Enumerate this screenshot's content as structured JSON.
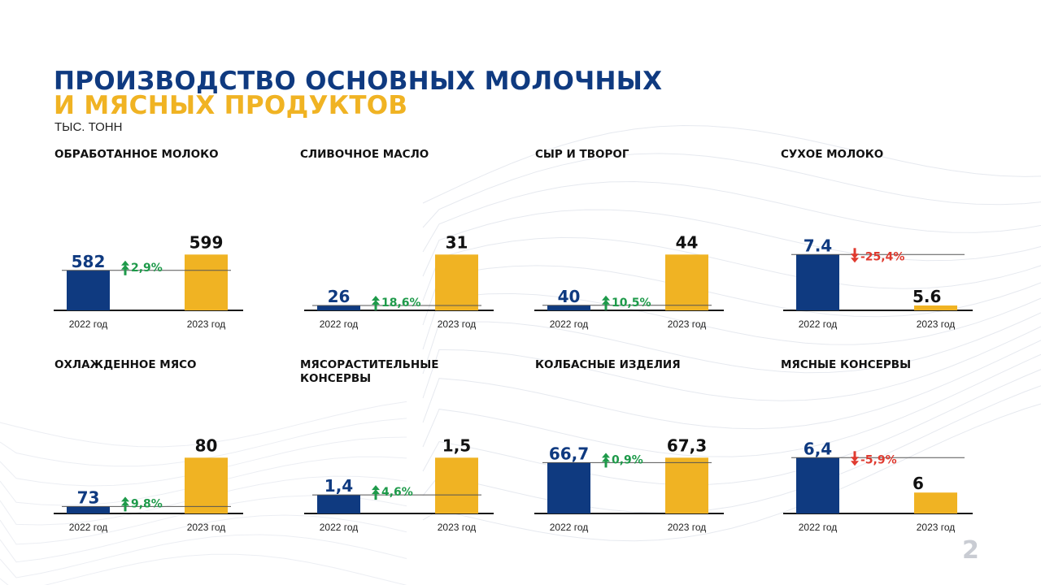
{
  "title_line1": "ПРОИЗВОДСТВО ОСНОВНЫХ МОЛОЧНЫХ",
  "title_line2": "И МЯСНЫХ ПРОДУКТОВ",
  "units": "ТЫС. ТОНН",
  "page_number": "2",
  "colors": {
    "bar_2022": "#0f3a80",
    "bar_2023": "#f0b323",
    "increase": "#1e9a4a",
    "decrease": "#e03a2f",
    "title_blue": "#0f3a80",
    "title_yellow": "#f0b323"
  },
  "chart_data": [
    {
      "type": "bar",
      "title": "ОБРАБОТАННОЕ МОЛОКО",
      "categories": [
        "2022 год",
        "2023 год"
      ],
      "values": [
        582,
        599
      ],
      "value_labels": [
        "582",
        "599"
      ],
      "change": "2,9%",
      "direction": "up"
    },
    {
      "type": "bar",
      "title": "СЛИВОЧНОЕ МАСЛО",
      "categories": [
        "2022 год",
        "2023 год"
      ],
      "values": [
        26,
        31
      ],
      "value_labels": [
        "26",
        "31"
      ],
      "change": "18,6%",
      "direction": "up"
    },
    {
      "type": "bar",
      "title": "СЫР И ТВОРОГ",
      "categories": [
        "2022 год",
        "2023 год"
      ],
      "values": [
        40,
        44
      ],
      "value_labels": [
        "40",
        "44"
      ],
      "change": "10,5%",
      "direction": "up"
    },
    {
      "type": "bar",
      "title": "СУХОЕ МОЛОКО",
      "categories": [
        "2022 год",
        "2023 год"
      ],
      "values": [
        7.4,
        5.6
      ],
      "value_labels": [
        "7.4",
        "5.6"
      ],
      "change": "-25,4%",
      "direction": "down"
    },
    {
      "type": "bar",
      "title": "ОХЛАЖДЕННОЕ МЯСО",
      "categories": [
        "2022 год",
        "2023 год"
      ],
      "values": [
        73,
        80
      ],
      "value_labels": [
        "73",
        "80"
      ],
      "change": "9,8%",
      "direction": "up"
    },
    {
      "type": "bar",
      "title": "МЯСОРАСТИТЕЛЬНЫЕ КОНСЕРВЫ",
      "categories": [
        "2022 год",
        "2023 год"
      ],
      "values": [
        1.4,
        1.5
      ],
      "value_labels": [
        "1,4",
        "1,5"
      ],
      "change": "4,6%",
      "direction": "up"
    },
    {
      "type": "bar",
      "title": "КОЛБАСНЫЕ ИЗДЕЛИЯ",
      "categories": [
        "2022 год",
        "2023 год"
      ],
      "values": [
        66.7,
        67.3
      ],
      "value_labels": [
        "66,7",
        "67,3"
      ],
      "change": "0,9%",
      "direction": "up"
    },
    {
      "type": "bar",
      "title": "МЯСНЫЕ КОНСЕРВЫ",
      "categories": [
        "2022 год",
        "2023 год"
      ],
      "values": [
        6.4,
        6
      ],
      "value_labels": [
        "6,4",
        "6"
      ],
      "change": "-5,9%",
      "direction": "down"
    }
  ]
}
